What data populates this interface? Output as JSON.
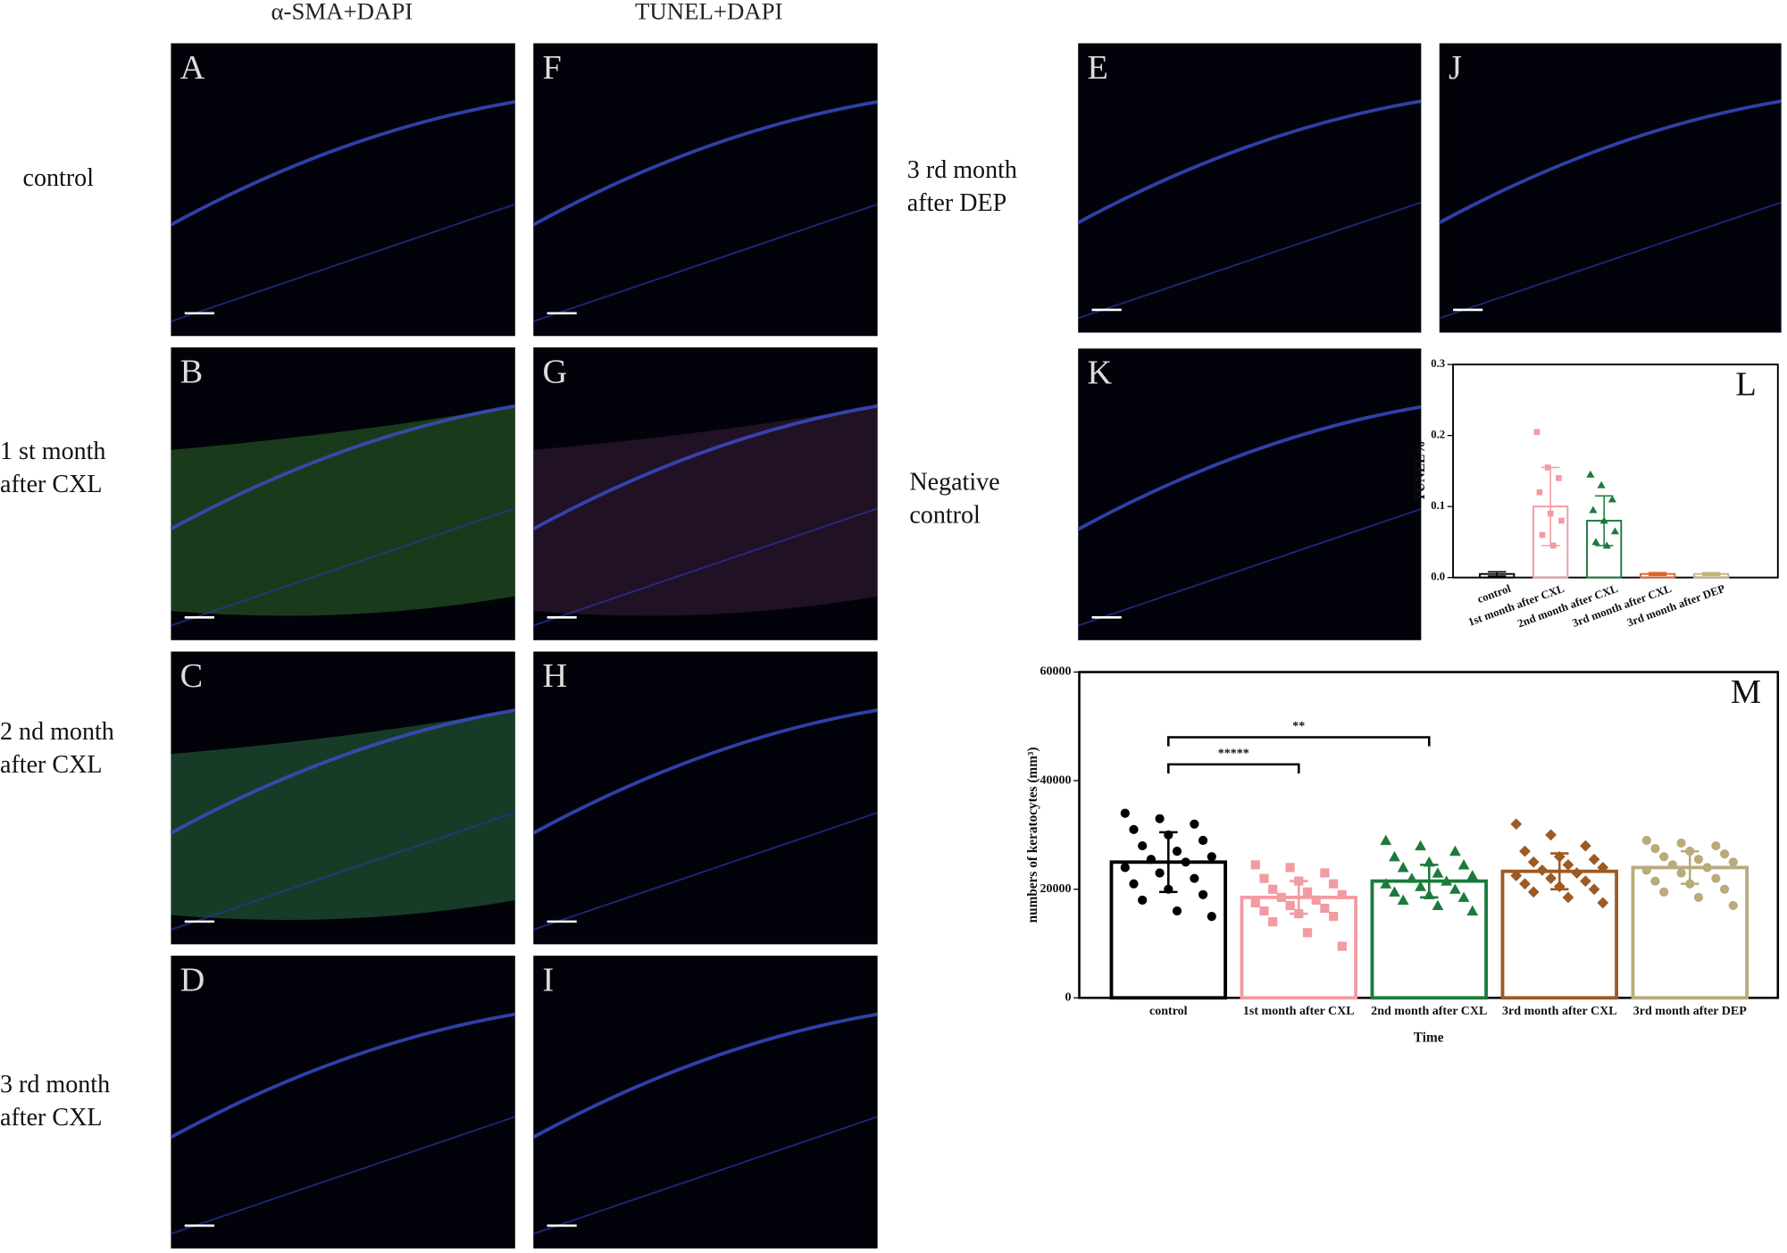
{
  "column_headers": [
    "α-SMA+DAPI",
    "TUNEL+DAPI"
  ],
  "row_labels": [
    [
      "control"
    ],
    [
      "1 st month",
      "after CXL"
    ],
    [
      "2 nd month",
      "after CXL"
    ],
    [
      "3 rd month",
      "after CXL"
    ],
    [
      "3 rd month",
      "after DEP"
    ],
    [
      "Negative",
      "control"
    ]
  ],
  "panels": [
    {
      "letter": "A"
    },
    {
      "letter": "F"
    },
    {
      "letter": "B"
    },
    {
      "letter": "G"
    },
    {
      "letter": "C"
    },
    {
      "letter": "H"
    },
    {
      "letter": "D"
    },
    {
      "letter": "I"
    },
    {
      "letter": "E"
    },
    {
      "letter": "J"
    },
    {
      "letter": "K"
    }
  ],
  "chart_data": [
    {
      "type": "bar",
      "letter": "L",
      "ylabel": "TUNEL%",
      "categories": [
        "control",
        "1st month after CXL",
        "2nd month after CXL",
        "3rd month after CXL",
        "3rd month after DEP"
      ],
      "values": [
        0.005,
        0.1,
        0.08,
        0.005,
        0.005
      ],
      "errors": [
        0.003,
        0.055,
        0.035,
        0.002,
        0.002
      ],
      "colors": [
        "#000000",
        "#f29ba0",
        "#1b7a3c",
        "#e0622a",
        "#c4b47c"
      ],
      "points": [
        [],
        [
          0.205,
          0.155,
          0.14,
          0.12,
          0.09,
          0.08,
          0.06,
          0.045
        ],
        [
          0.145,
          0.13,
          0.11,
          0.095,
          0.08,
          0.065,
          0.05,
          0.045
        ],
        [],
        []
      ],
      "ylim": [
        0,
        0.3
      ],
      "yticks": [
        {
          "value": 0,
          "label": "0.0"
        },
        {
          "value": 0.1,
          "label": "0.1"
        },
        {
          "value": 0.2,
          "label": "0.2"
        },
        {
          "value": 0.3,
          "label": "0.3"
        }
      ]
    },
    {
      "type": "bar",
      "letter": "M",
      "ylabel": "numbers of keratocytes (mm³)",
      "xlabel": "Time",
      "categories": [
        "control",
        "1st month after CXL",
        "2nd month after CXL",
        "3rd month after CXL",
        "3rd month after DEP"
      ],
      "values": [
        25000,
        18500,
        21500,
        23300,
        24000
      ],
      "errors": [
        5500,
        3000,
        3000,
        3300,
        3000
      ],
      "colors": [
        "#000000",
        "#f29ba0",
        "#1b7a3c",
        "#9c5a24",
        "#b9ab7a"
      ],
      "points": [
        [
          34000,
          33000,
          32000,
          31000,
          30000,
          29000,
          28000,
          27000,
          26000,
          25500,
          25000,
          24000,
          23000,
          22000,
          21000,
          20000,
          19000,
          18000,
          16000,
          15000
        ],
        [
          24500,
          24000,
          23000,
          22000,
          21500,
          21000,
          20000,
          19500,
          19000,
          18500,
          18000,
          17500,
          17000,
          16500,
          16000,
          15500,
          15000,
          14000,
          12000,
          9500
        ],
        [
          29000,
          28000,
          27000,
          26000,
          25000,
          24500,
          24000,
          23000,
          22500,
          22000,
          21500,
          21000,
          20500,
          20000,
          19500,
          19000,
          18500,
          18000,
          17000,
          16000
        ],
        [
          32000,
          30000,
          28000,
          27000,
          26000,
          25500,
          25000,
          24500,
          24000,
          23500,
          23000,
          22500,
          22000,
          21500,
          21000,
          20500,
          20000,
          19500,
          18500,
          17500
        ],
        [
          29000,
          28500,
          28000,
          27500,
          27000,
          26500,
          26000,
          25500,
          25000,
          24500,
          24000,
          23500,
          23000,
          22000,
          21500,
          21000,
          20000,
          19500,
          18500,
          17000
        ]
      ],
      "significance": [
        {
          "text": "*****",
          "from": 0,
          "to": 1,
          "y": 43000
        },
        {
          "text": "**",
          "from": 0,
          "to": 2,
          "y": 48000
        }
      ],
      "ylim": [
        0,
        60000
      ],
      "yticks": [
        0,
        20000,
        40000,
        60000
      ]
    }
  ]
}
